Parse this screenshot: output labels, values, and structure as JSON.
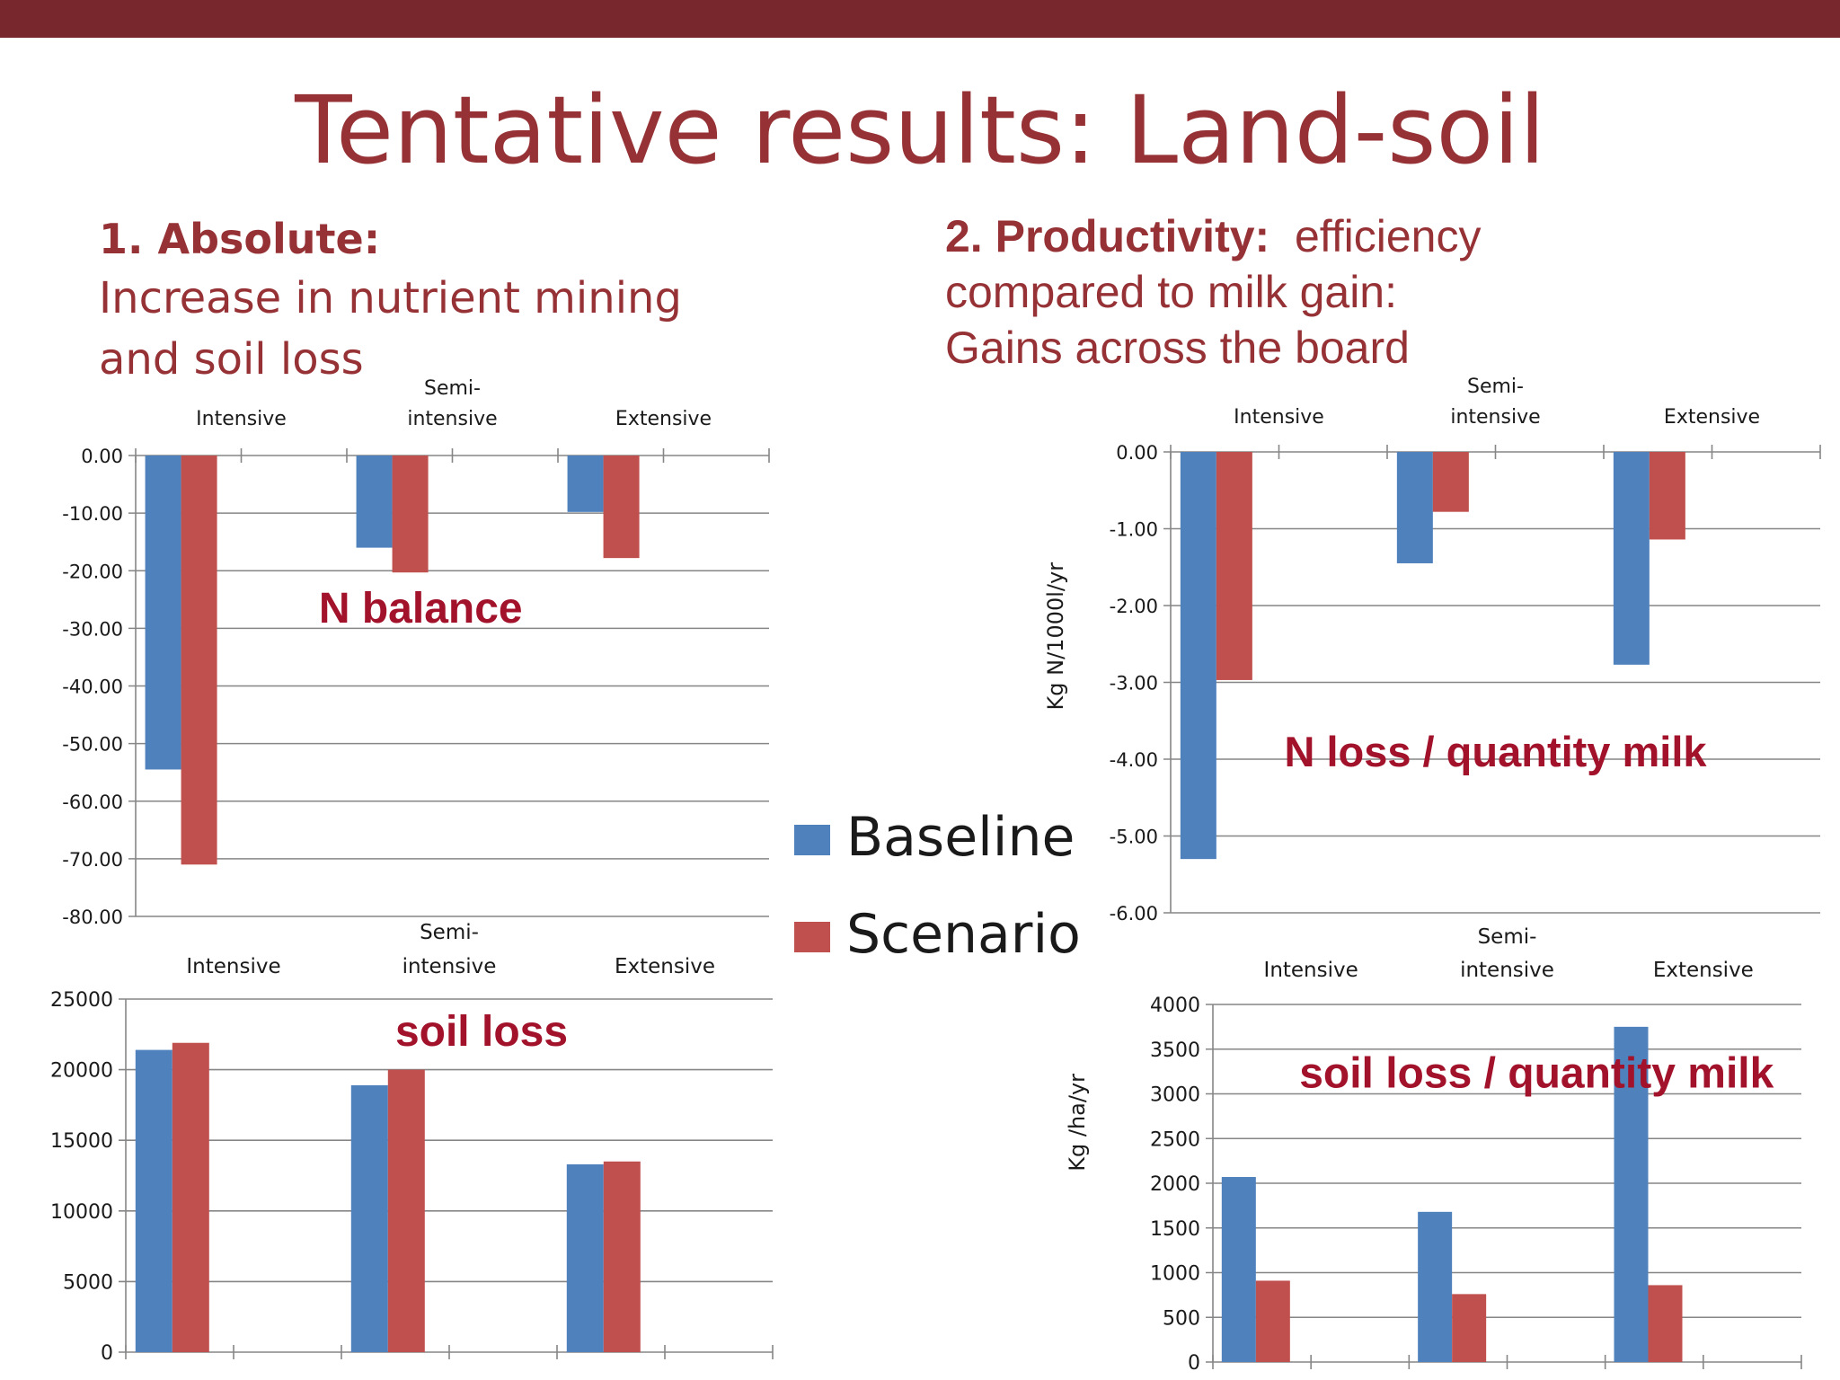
{
  "slide": {
    "title": "Tentative results: Land-soil",
    "section1": {
      "heading": "1.  Absolute:",
      "line1": "Increase in nutrient mining",
      "line2": "and soil loss"
    },
    "section2": {
      "heading": "2. Productivity:",
      "heading_rest": "  efficiency",
      "line2": "compared to milk gain:",
      "line3": "Gains across the board"
    },
    "colors": {
      "bar_baseline": "#4f81bd",
      "bar_scenario": "#c0504d",
      "accent": "#963235",
      "top_bar": "#78272c",
      "chart_label": "#a2132b"
    }
  },
  "legend": {
    "items": [
      {
        "label": "Baseline",
        "color": "#4f81bd"
      },
      {
        "label": "Scenario",
        "color": "#c0504d"
      }
    ]
  },
  "chart_data": [
    {
      "type": "bar",
      "title": "N balance",
      "categories": [
        "Intensive",
        "Semi-intensive",
        "Extensive"
      ],
      "category_lines": [
        [
          "Intensive"
        ],
        [
          "Semi-",
          "intensive"
        ],
        [
          "Extensive"
        ]
      ],
      "series": [
        {
          "name": "Baseline",
          "values": [
            -54.5,
            -16,
            -9.8
          ]
        },
        {
          "name": "Scenario",
          "values": [
            -71,
            -20.3,
            -17.8
          ]
        }
      ],
      "ylim": [
        -80,
        0
      ],
      "yticks": [
        "0.00",
        "-10.00",
        "-20.00",
        "-30.00",
        "-40.00",
        "-50.00",
        "-60.00",
        "-70.00",
        "-80.00"
      ],
      "ylabel": "",
      "category_axis": "top",
      "grid": true
    },
    {
      "type": "bar",
      "title": "N loss / quantity milk",
      "categories": [
        "Intensive",
        "Semi-intensive",
        "Extensive"
      ],
      "category_lines": [
        [
          "Intensive"
        ],
        [
          "Semi-",
          "intensive"
        ],
        [
          "Extensive"
        ]
      ],
      "series": [
        {
          "name": "Baseline",
          "values": [
            -5.3,
            -1.45,
            -2.77
          ]
        },
        {
          "name": "Scenario",
          "values": [
            -2.97,
            -0.78,
            -1.14
          ]
        }
      ],
      "ylim": [
        -6,
        0
      ],
      "yticks": [
        "0.00",
        "-1.00",
        "-2.00",
        "-3.00",
        "-4.00",
        "-5.00",
        "-6.00"
      ],
      "ylabel": "Kg N/1000l/yr",
      "category_axis": "top",
      "grid": true
    },
    {
      "type": "bar",
      "title": "soil loss",
      "categories": [
        "Intensive",
        "Semi-intensive",
        "Extensive"
      ],
      "category_lines": [
        [
          "Intensive"
        ],
        [
          "Semi-",
          "intensive"
        ],
        [
          "Extensive"
        ]
      ],
      "series": [
        {
          "name": "Baseline",
          "values": [
            21400,
            18900,
            13300
          ]
        },
        {
          "name": "Scenario",
          "values": [
            21900,
            20000,
            13500
          ]
        }
      ],
      "ylim": [
        0,
        25000
      ],
      "yticks": [
        "25000",
        "20000",
        "15000",
        "10000",
        "5000",
        "0"
      ],
      "ylabel": "",
      "category_axis": "top",
      "grid": true
    },
    {
      "type": "bar",
      "title": "soil loss / quantity milk",
      "categories": [
        "Intensive",
        "Semi-intensive",
        "Extensive"
      ],
      "category_lines": [
        [
          "Intensive"
        ],
        [
          "Semi-",
          "intensive"
        ],
        [
          "Extensive"
        ]
      ],
      "series": [
        {
          "name": "Baseline",
          "values": [
            2070,
            1680,
            3750
          ]
        },
        {
          "name": "Scenario",
          "values": [
            910,
            760,
            860
          ]
        }
      ],
      "ylim": [
        0,
        4000
      ],
      "yticks": [
        "4000",
        "3500",
        "3000",
        "2500",
        "2000",
        "1500",
        "1000",
        "500",
        "0"
      ],
      "ylabel": "Kg /ha/yr",
      "category_axis": "top",
      "grid": true
    }
  ]
}
